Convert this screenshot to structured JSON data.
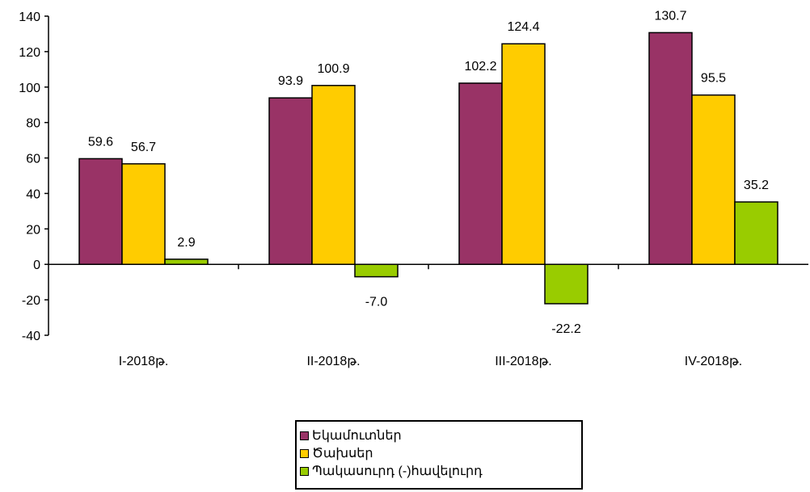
{
  "chart_data": {
    "type": "bar",
    "categories": [
      "I-2018թ.",
      "II-2018թ.",
      "III-2018թ.",
      "IV-2018թ."
    ],
    "series": [
      {
        "name": "Եկամուտներ",
        "values": [
          59.6,
          93.9,
          102.2,
          130.7
        ],
        "color": "#993366"
      },
      {
        "name": "Ծախսեր",
        "values": [
          56.7,
          100.9,
          124.4,
          95.5
        ],
        "color": "#FFCC00"
      },
      {
        "name": "Պակասուրդ (-)հավելուրդ",
        "values": [
          2.9,
          -7.0,
          -22.2,
          35.2
        ],
        "color": "#99CC00"
      }
    ],
    "data_labels": [
      [
        "59.6",
        "93.9",
        "102.2",
        "130.7"
      ],
      [
        "56.7",
        "100.9",
        "124.4",
        "95.5"
      ],
      [
        "2.9",
        "-7.0",
        "-22.2",
        "35.2"
      ]
    ],
    "yticks": [
      "-40",
      "-20",
      "0",
      "20",
      "40",
      "60",
      "80",
      "100",
      "120",
      "140"
    ],
    "ylim": [
      -40,
      140
    ],
    "grid": false,
    "legend_position": "bottom",
    "title": "",
    "xlabel": "",
    "ylabel": ""
  }
}
